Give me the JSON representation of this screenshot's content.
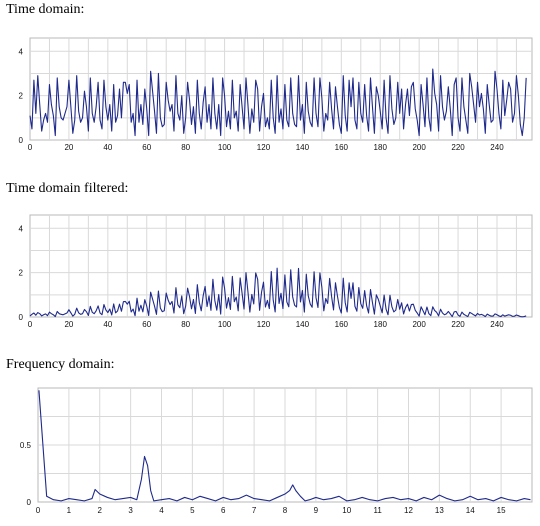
{
  "headings": {
    "time": "Time domain:",
    "filtered": "Time domain filtered:",
    "frequency": "Frequency domain:"
  },
  "colors": {
    "line": "#1f2a8c",
    "grid": "#d9d9d9",
    "axis": "#b8b8b8"
  },
  "chart_data": [
    {
      "type": "line",
      "title": "Time domain:",
      "xlim": [
        0,
        258
      ],
      "ylim": [
        0,
        4.6
      ],
      "xticks": [
        0,
        20,
        40,
        60,
        80,
        100,
        120,
        140,
        160,
        180,
        200,
        220,
        240
      ],
      "yticks": [
        0,
        2,
        4
      ],
      "xgrid_step": 10,
      "ygrid_step": 1,
      "grid": true,
      "y": [
        1.1,
        0.5,
        2.7,
        1.2,
        2.9,
        1.6,
        0.4,
        0.9,
        1.2,
        0.8,
        2.5,
        1.6,
        1.1,
        0.2,
        2.8,
        1.5,
        1.0,
        0.9,
        1.2,
        1.5,
        2.7,
        1.5,
        0.3,
        0.9,
        2.9,
        1.3,
        0.8,
        1.0,
        2.2,
        1.5,
        0.4,
        2.8,
        1.2,
        0.8,
        1.5,
        2.6,
        0.9,
        0.5,
        2.7,
        1.5,
        0.9,
        1.6,
        0.4,
        2.5,
        0.8,
        1.1,
        2.3,
        1.0,
        2.6,
        2.6,
        2.1,
        2.5,
        0.8,
        1.2,
        0.2,
        2.7,
        0.8,
        1.6,
        0.7,
        2.3,
        1.4,
        0.2,
        3.1,
        2.2,
        1.3,
        0.3,
        3.0,
        1.0,
        0.6,
        0.7,
        2.6,
        1.8,
        1.3,
        1.6,
        0.4,
        2.9,
        1.2,
        0.9,
        2.0,
        0.3,
        1.0,
        2.6,
        1.8,
        0.7,
        1.5,
        0.3,
        2.7,
        1.2,
        0.5,
        1.7,
        2.4,
        0.8,
        1.6,
        0.5,
        2.8,
        1.2,
        0.5,
        1.6,
        0.2,
        2.8,
        2.0,
        0.6,
        1.3,
        0.5,
        2.7,
        1.0,
        1.3,
        0.4,
        2.5,
        1.5,
        0.5,
        2.8,
        1.6,
        0.3,
        1.4,
        0.8,
        2.7,
        2.3,
        0.4,
        1.5,
        2.1,
        0.6,
        1.0,
        0.5,
        2.7,
        1.0,
        0.3,
        2.9,
        0.8,
        1.4,
        0.5,
        2.5,
        0.9,
        0.6,
        2.8,
        1.2,
        0.7,
        0.6,
        2.9,
        0.9,
        1.6,
        0.3,
        2.6,
        1.3,
        0.8,
        0.6,
        2.8,
        1.2,
        0.6,
        2.8,
        1.9,
        0.4,
        1.2,
        0.9,
        2.6,
        1.4,
        0.5,
        2.4,
        1.5,
        0.7,
        0.3,
        2.9,
        1.1,
        0.4,
        2.7,
        1.5,
        2.8,
        0.9,
        0.5,
        2.6,
        1.2,
        0.8,
        2.5,
        1.1,
        0.4,
        2.8,
        1.5,
        0.3,
        2.4,
        2.0,
        1.3,
        0.5,
        2.7,
        1.0,
        0.3,
        2.9,
        1.4,
        0.7,
        1.0,
        2.6,
        1.2,
        2.3,
        0.5,
        1.6,
        2.3,
        1.1,
        2.4,
        2.6,
        1.4,
        0.9,
        0.2,
        2.5,
        1.6,
        0.6,
        2.8,
        1.0,
        0.4,
        3.2,
        2.1,
        1.6,
        0.4,
        2.9,
        1.5,
        0.9,
        1.3,
        2.4,
        1.4,
        0.2,
        2.5,
        2.8,
        1.0,
        0.4,
        2.8,
        1.5,
        0.9,
        0.3,
        3.0,
        2.4,
        1.6,
        0.8,
        2.6,
        1.5,
        2.1,
        1.4,
        0.3,
        2.5,
        1.6,
        0.8,
        0.9,
        3.1,
        2.3,
        1.2,
        0.5,
        2.7,
        1.1,
        1.8,
        2.6,
        2.3,
        0.8,
        1.2,
        2.9,
        2.0,
        0.7,
        0.2,
        1.0,
        2.8
      ]
    },
    {
      "type": "line",
      "title": "Time domain filtered:",
      "xlim": [
        0,
        258
      ],
      "ylim": [
        0,
        4.6
      ],
      "xticks": [
        0,
        20,
        40,
        60,
        80,
        100,
        120,
        140,
        160,
        180,
        200,
        220,
        240
      ],
      "yticks": [
        0,
        2,
        4
      ],
      "xgrid_step": 10,
      "ygrid_step": 1,
      "grid": true,
      "y": [
        0.05,
        0.12,
        0.18,
        0.08,
        0.2,
        0.15,
        0.05,
        0.1,
        0.14,
        0.06,
        0.22,
        0.15,
        0.1,
        0.02,
        0.25,
        0.15,
        0.12,
        0.1,
        0.14,
        0.18,
        0.33,
        0.19,
        0.04,
        0.12,
        0.4,
        0.19,
        0.12,
        0.15,
        0.34,
        0.24,
        0.07,
        0.48,
        0.21,
        0.15,
        0.28,
        0.5,
        0.18,
        0.1,
        0.56,
        0.32,
        0.2,
        0.36,
        0.09,
        0.59,
        0.19,
        0.27,
        0.58,
        0.26,
        0.69,
        0.7,
        0.58,
        0.71,
        0.23,
        0.36,
        0.06,
        0.85,
        0.26,
        0.53,
        0.23,
        0.78,
        0.49,
        0.07,
        1.12,
        0.81,
        0.49,
        0.12,
        1.17,
        0.4,
        0.24,
        0.28,
        1.08,
        0.76,
        0.56,
        0.7,
        0.18,
        1.32,
        0.55,
        0.42,
        0.95,
        0.15,
        0.49,
        1.3,
        0.92,
        0.37,
        0.79,
        0.16,
        1.46,
        0.66,
        0.28,
        0.96,
        1.38,
        0.47,
        0.95,
        0.3,
        1.7,
        0.74,
        0.31,
        1.01,
        0.13,
        1.8,
        1.3,
        0.4,
        0.87,
        0.34,
        1.83,
        0.69,
        0.9,
        0.28,
        1.76,
        1.07,
        0.36,
        2.0,
        1.15,
        0.22,
        1.02,
        0.59,
        1.99,
        1.7,
        0.3,
        1.12,
        1.57,
        0.45,
        0.75,
        0.38,
        2.05,
        0.76,
        0.23,
        2.2,
        0.61,
        1.07,
        0.38,
        1.9,
        0.68,
        0.46,
        2.13,
        0.91,
        0.53,
        0.45,
        2.19,
        0.68,
        1.2,
        0.22,
        1.93,
        0.96,
        0.59,
        0.44,
        2.04,
        0.87,
        0.43,
        1.99,
        1.34,
        0.28,
        0.83,
        0.61,
        1.74,
        0.92,
        0.32,
        1.54,
        0.95,
        0.43,
        0.18,
        1.75,
        0.65,
        0.23,
        1.54,
        0.84,
        1.54,
        0.48,
        0.26,
        1.33,
        0.6,
        0.39,
        1.19,
        0.51,
        0.18,
        1.24,
        0.65,
        0.13,
        1.0,
        0.8,
        0.5,
        0.19,
        0.99,
        0.35,
        0.1,
        0.98,
        0.46,
        0.23,
        0.31,
        0.79,
        0.35,
        0.64,
        0.14,
        0.42,
        0.58,
        0.27,
        0.56,
        0.58,
        0.3,
        0.18,
        0.04,
        0.46,
        0.28,
        0.1,
        0.45,
        0.15,
        0.06,
        0.46,
        0.29,
        0.21,
        0.05,
        0.35,
        0.18,
        0.1,
        0.14,
        0.25,
        0.14,
        0.02,
        0.23,
        0.25,
        0.09,
        0.03,
        0.22,
        0.12,
        0.07,
        0.02,
        0.21,
        0.16,
        0.1,
        0.05,
        0.16,
        0.09,
        0.12,
        0.08,
        0.02,
        0.13,
        0.08,
        0.04,
        0.04,
        0.14,
        0.1,
        0.05,
        0.02,
        0.1,
        0.04,
        0.07,
        0.1,
        0.08,
        0.03,
        0.04,
        0.09,
        0.06,
        0.02,
        0.01,
        0.02,
        0.05
      ]
    },
    {
      "type": "line",
      "title": "Frequency domain:",
      "xlim": [
        0,
        16
      ],
      "ylim": [
        0,
        1.0
      ],
      "xticks": [
        0,
        1,
        2,
        3,
        4,
        5,
        6,
        7,
        8,
        9,
        10,
        11,
        12,
        13,
        14,
        15
      ],
      "yticks": [
        0,
        0.5
      ],
      "ytick_labels": [
        "0",
        "0.5"
      ],
      "xgrid_step": 1,
      "ygrid_step": 0.25,
      "grid": true,
      "x": [
        0.03,
        0.28,
        0.5,
        0.75,
        1.0,
        1.25,
        1.5,
        1.75,
        1.85,
        2.0,
        2.25,
        2.5,
        2.75,
        3.0,
        3.2,
        3.35,
        3.45,
        3.55,
        3.65,
        3.75,
        4.0,
        4.25,
        4.5,
        4.75,
        5.0,
        5.25,
        5.5,
        5.75,
        6.0,
        6.25,
        6.5,
        6.75,
        7.0,
        7.25,
        7.5,
        7.75,
        8.0,
        8.15,
        8.25,
        8.35,
        8.5,
        8.65,
        8.8,
        9.0,
        9.25,
        9.5,
        9.75,
        10.0,
        10.25,
        10.5,
        10.75,
        11.0,
        11.25,
        11.5,
        11.75,
        12.0,
        12.25,
        12.5,
        12.75,
        13.0,
        13.25,
        13.5,
        13.75,
        14.0,
        14.25,
        14.5,
        14.75,
        15.0,
        15.25,
        15.5,
        15.75,
        15.95
      ],
      "y": [
        0.98,
        0.05,
        0.02,
        0.01,
        0.03,
        0.02,
        0.01,
        0.03,
        0.11,
        0.07,
        0.04,
        0.02,
        0.03,
        0.04,
        0.02,
        0.2,
        0.4,
        0.32,
        0.1,
        0.01,
        0.02,
        0.03,
        0.01,
        0.04,
        0.02,
        0.05,
        0.03,
        0.01,
        0.04,
        0.02,
        0.03,
        0.06,
        0.03,
        0.02,
        0.01,
        0.04,
        0.07,
        0.1,
        0.15,
        0.1,
        0.05,
        0.01,
        0.02,
        0.04,
        0.02,
        0.03,
        0.05,
        0.01,
        0.02,
        0.04,
        0.02,
        0.01,
        0.03,
        0.04,
        0.02,
        0.03,
        0.01,
        0.04,
        0.02,
        0.06,
        0.03,
        0.01,
        0.02,
        0.05,
        0.02,
        0.03,
        0.01,
        0.04,
        0.02,
        0.01,
        0.03,
        0.02
      ]
    }
  ]
}
